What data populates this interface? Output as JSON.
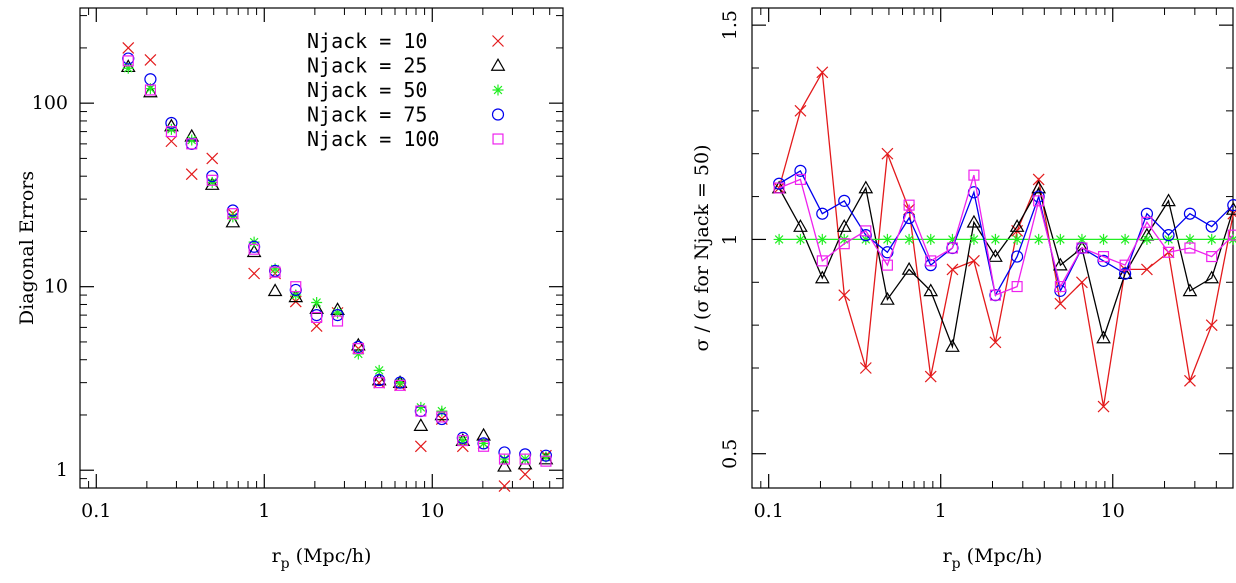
{
  "colors": {
    "Njack = 10": "#e31a1c",
    "Njack = 25": "#000000",
    "Njack = 50": "#22ee22",
    "Njack = 75": "#0000ee",
    "Njack = 100": "#ee22ee"
  },
  "chart_data": [
    {
      "type": "scatter",
      "xscale": "log",
      "yscale": "log",
      "xlim": [
        0.08,
        60
      ],
      "ylim": [
        0.8,
        330
      ],
      "xticks": [
        0.1,
        1,
        10
      ],
      "xtick_labels": [
        "0.1",
        "1",
        "10"
      ],
      "yticks": [
        1,
        10,
        100
      ],
      "ytick_labels": [
        "1",
        "10",
        "100"
      ],
      "xlabel_main": "r",
      "xlabel_sub": "p",
      "xlabel_rest": " (Mpc/h)",
      "ylabel": "Diagonal Errors",
      "legend_placement": "top-right",
      "x": [
        0.155,
        0.21,
        0.28,
        0.37,
        0.49,
        0.65,
        0.87,
        1.16,
        1.54,
        2.05,
        2.73,
        3.63,
        4.83,
        6.43,
        8.55,
        11.4,
        15.2,
        20.2,
        26.9,
        35.7,
        47.5
      ],
      "series": [
        {
          "name": "Njack = 10",
          "marker": "x",
          "values": [
            200,
            172,
            62,
            41,
            50,
            25,
            11.8,
            11.8,
            8.3,
            6.1,
            7.2,
            4.6,
            3.0,
            2.9,
            1.35,
            1.9,
            1.35,
            1.4,
            0.82,
            0.95,
            1.2
          ]
        },
        {
          "name": "Njack = 25",
          "marker": "triangle",
          "values": [
            158,
            115,
            75,
            66,
            36,
            22.5,
            15.5,
            9.5,
            8.8,
            7.6,
            7.5,
            4.8,
            3.1,
            3.0,
            1.75,
            2.0,
            1.45,
            1.55,
            1.05,
            1.08,
            1.15
          ]
        },
        {
          "name": "Njack = 50",
          "marker": "asterisk",
          "values": [
            155,
            120,
            72,
            63,
            37,
            24,
            17.5,
            12.5,
            9.0,
            8.2,
            7.2,
            4.3,
            3.5,
            3.0,
            2.2,
            2.1,
            1.45,
            1.4,
            1.15,
            1.15,
            1.18
          ]
        },
        {
          "name": "Njack = 75",
          "marker": "circle",
          "values": [
            175,
            135,
            78,
            60,
            40,
            26,
            16.5,
            12.2,
            9.6,
            7.0,
            7.0,
            4.7,
            3.1,
            3.0,
            2.1,
            1.9,
            1.5,
            1.4,
            1.25,
            1.22,
            1.2
          ]
        },
        {
          "name": "Njack = 100",
          "marker": "square",
          "values": [
            170,
            118,
            70,
            60,
            38,
            25,
            16,
            12,
            10,
            6.8,
            6.5,
            4.6,
            3.0,
            2.9,
            2.1,
            1.95,
            1.45,
            1.35,
            1.15,
            1.15,
            1.12
          ]
        }
      ]
    },
    {
      "type": "line",
      "xscale": "log",
      "yscale": "linear",
      "xlim": [
        0.08,
        50
      ],
      "ylim": [
        0.42,
        1.54
      ],
      "xticks": [
        0.1,
        1,
        10
      ],
      "xtick_labels": [
        "0.1",
        "1",
        "10"
      ],
      "yticks": [
        0.5,
        1,
        1.5
      ],
      "ytick_labels": [
        "0.5",
        "1",
        "1.5"
      ],
      "xlabel_main": "r",
      "xlabel_sub": "p",
      "xlabel_rest": " (Mpc/h)",
      "ylabel": "σ / (σ for Njack = 50)",
      "x": [
        0.115,
        0.153,
        0.205,
        0.275,
        0.367,
        0.49,
        0.655,
        0.875,
        1.17,
        1.56,
        2.08,
        2.78,
        3.71,
        4.96,
        6.62,
        8.84,
        11.8,
        15.8,
        21.1,
        28.1,
        37.6,
        50.2
      ],
      "series": [
        {
          "name": "Njack = 10",
          "marker": "x",
          "values": [
            1.12,
            1.3,
            1.39,
            0.87,
            0.7,
            1.2,
            1.07,
            0.68,
            0.93,
            0.95,
            0.76,
            1.02,
            1.14,
            0.85,
            0.9,
            0.61,
            0.93,
            0.93,
            0.97,
            0.67,
            0.8,
            1.06
          ]
        },
        {
          "name": "Njack = 25",
          "marker": "triangle",
          "values": [
            1.12,
            1.03,
            0.91,
            1.03,
            1.12,
            0.86,
            0.93,
            0.88,
            0.75,
            1.04,
            0.96,
            1.03,
            1.12,
            0.94,
            0.98,
            0.77,
            0.92,
            1.01,
            1.09,
            0.88,
            0.91,
            1.07
          ]
        },
        {
          "name": "Njack = 50",
          "marker": "asterisk",
          "values": [
            1.0,
            1.0,
            1.0,
            1.0,
            1.0,
            1.0,
            1.0,
            1.0,
            1.0,
            1.0,
            1.0,
            1.0,
            1.0,
            1.0,
            1.0,
            1.0,
            1.0,
            1.0,
            1.0,
            1.0,
            1.0,
            1.0
          ]
        },
        {
          "name": "Njack = 75",
          "marker": "circle",
          "values": [
            1.13,
            1.16,
            1.06,
            1.09,
            1.01,
            0.97,
            1.05,
            0.94,
            0.98,
            1.11,
            0.87,
            0.96,
            1.1,
            0.88,
            0.98,
            0.95,
            0.92,
            1.06,
            1.01,
            1.06,
            1.03,
            1.08
          ]
        },
        {
          "name": "Njack = 100",
          "marker": "square",
          "values": [
            1.12,
            1.14,
            0.95,
            0.99,
            1.02,
            0.94,
            1.08,
            0.95,
            0.98,
            1.15,
            0.87,
            0.89,
            1.09,
            0.89,
            0.98,
            0.96,
            0.94,
            1.04,
            0.97,
            0.98,
            0.96,
            1.01
          ]
        }
      ]
    }
  ]
}
